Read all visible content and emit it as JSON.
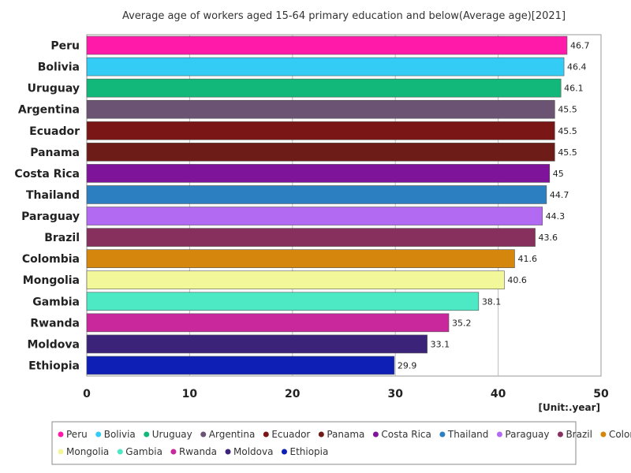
{
  "chart_data": {
    "type": "bar",
    "orientation": "horizontal",
    "title": "Average age of workers aged 15-64 primary education and below(Average age)[2021]",
    "unit_label": "[Unit:.year]",
    "xlim": [
      0,
      50
    ],
    "x_ticks": [
      "0",
      "10",
      "20",
      "30",
      "40",
      "50"
    ],
    "grid": true,
    "legend_position": "bottom",
    "categories": [
      "Peru",
      "Bolivia",
      "Uruguay",
      "Argentina",
      "Ecuador",
      "Panama",
      "Costa Rica",
      "Thailand",
      "Paraguay",
      "Brazil",
      "Colombia",
      "Mongolia",
      "Gambia",
      "Rwanda",
      "Moldova",
      "Ethiopia"
    ],
    "values": [
      46.7,
      46.4,
      46.1,
      45.5,
      45.5,
      45.5,
      45,
      44.7,
      44.3,
      43.6,
      41.6,
      40.6,
      38.1,
      35.2,
      33.1,
      29.9
    ],
    "value_labels": [
      "46.7",
      "46.4",
      "46.1",
      "45.5",
      "45.5",
      "45.5",
      "45",
      "44.7",
      "44.3",
      "43.6",
      "41.6",
      "40.6",
      "38.1",
      "35.2",
      "33.1",
      "29.9"
    ],
    "colors": [
      "#ff1aaa",
      "#33ccf5",
      "#11b87a",
      "#6b5473",
      "#7a1616",
      "#6e1c18",
      "#7d1499",
      "#2c7fc0",
      "#b36af2",
      "#87305e",
      "#d4870c",
      "#f2f79a",
      "#4de8c4",
      "#c9289c",
      "#3b237a",
      "#0d1fb5"
    ]
  }
}
